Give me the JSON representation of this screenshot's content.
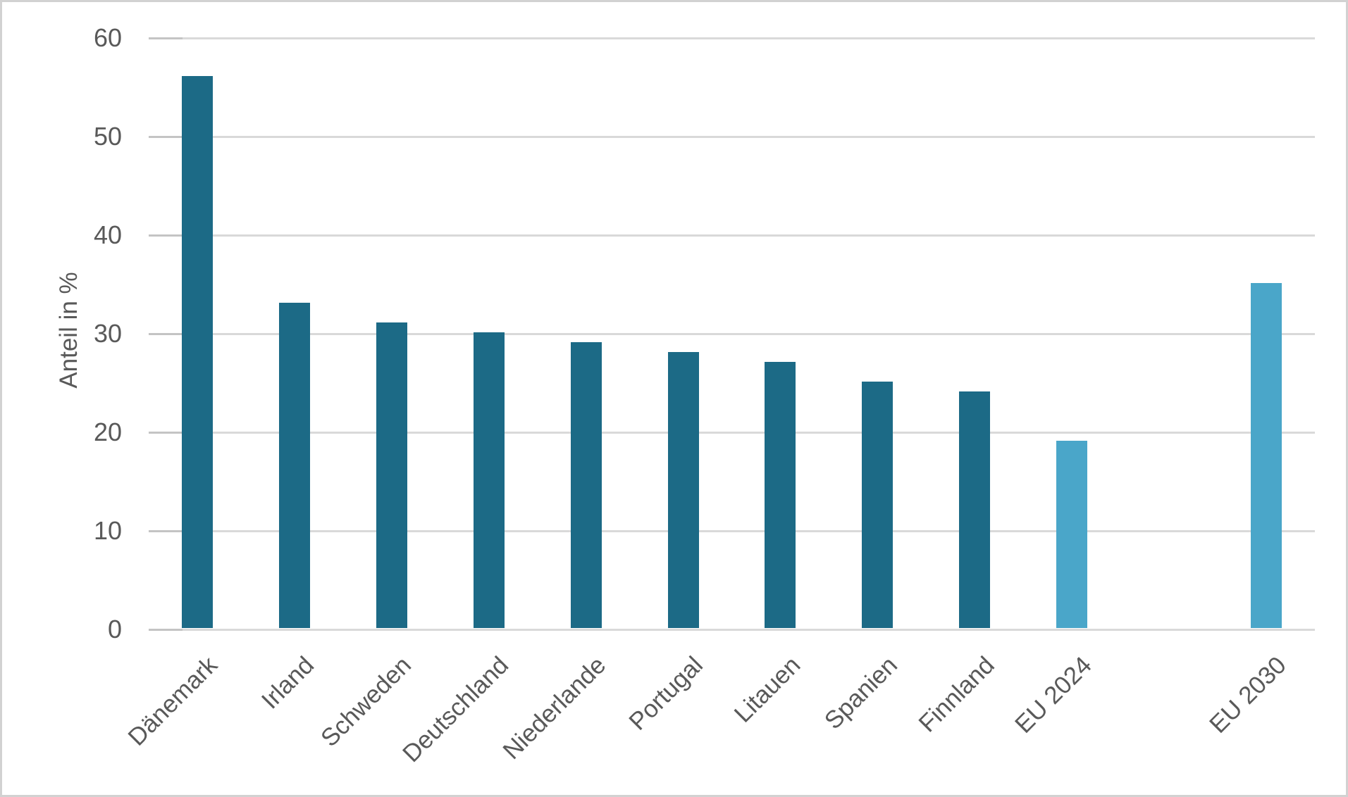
{
  "chart_data": {
    "type": "bar",
    "title": "",
    "xlabel": "",
    "ylabel": "Anteil in %",
    "ylim": [
      0,
      60
    ],
    "yticks": [
      0,
      10,
      20,
      30,
      40,
      50,
      60
    ],
    "grid": "horizontal",
    "legend": "none",
    "categories": [
      "Dänemark",
      "Irland",
      "Schweden",
      "Deutschland",
      "Niederlande",
      "Portugal",
      "Litauen",
      "Spanien",
      "Finnland",
      "EU 2024",
      "EU 2030"
    ],
    "values": [
      56,
      33,
      31,
      30,
      29,
      28,
      27,
      25,
      24,
      19,
      35
    ],
    "bars": [
      {
        "label": "Dänemark",
        "value": 56,
        "color_key": "country",
        "gap_before": false
      },
      {
        "label": "Irland",
        "value": 33,
        "color_key": "country",
        "gap_before": false
      },
      {
        "label": "Schweden",
        "value": 31,
        "color_key": "country",
        "gap_before": false
      },
      {
        "label": "Deutschland",
        "value": 30,
        "color_key": "country",
        "gap_before": false
      },
      {
        "label": "Niederlande",
        "value": 29,
        "color_key": "country",
        "gap_before": false
      },
      {
        "label": "Portugal",
        "value": 28,
        "color_key": "country",
        "gap_before": false
      },
      {
        "label": "Litauen",
        "value": 27,
        "color_key": "country",
        "gap_before": false
      },
      {
        "label": "Spanien",
        "value": 25,
        "color_key": "country",
        "gap_before": false
      },
      {
        "label": "Finnland",
        "value": 24,
        "color_key": "country",
        "gap_before": false
      },
      {
        "label": "EU 2024",
        "value": 19,
        "color_key": "eu",
        "gap_before": false
      },
      {
        "label": "EU 2030",
        "value": 35,
        "color_key": "eu",
        "gap_before": true
      }
    ],
    "colors": {
      "country": "#1C6A86",
      "eu": "#4AA6C9",
      "gridline": "#d9d9d9",
      "tick": "#c4c4c4",
      "text": "#595959"
    }
  }
}
